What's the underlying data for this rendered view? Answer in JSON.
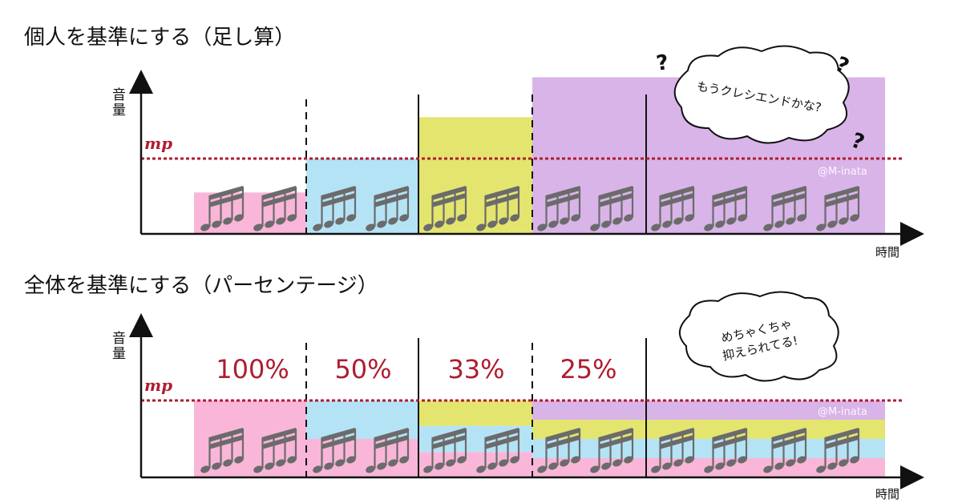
{
  "colors": {
    "pink": "#f9b6d8",
    "blue": "#b5e3f6",
    "yellow": "#e3e56f",
    "purple": "#d9b4e8",
    "reference_line": "#b01c30",
    "note": "#6b6b6b"
  },
  "legend_symbol": "note-group-icon",
  "panels": [
    {
      "title": "個人を基準にする（足し算）",
      "y_axis_label": [
        "音",
        "量"
      ],
      "x_axis_label": "時間",
      "reference_label": "mp",
      "watermark": "@M-inata",
      "percents": [],
      "bubble": [
        "もうクレシエンドかな?"
      ],
      "question_marks": [
        "?",
        "?",
        "?"
      ],
      "layers": [
        {
          "color": "pink",
          "from": 0,
          "to": 4,
          "level": 0.55
        },
        {
          "color": "blue",
          "from": 1,
          "to": 4,
          "level": 1.0
        },
        {
          "color": "yellow",
          "from": 2,
          "to": 4,
          "level": 1.55
        },
        {
          "color": "purple",
          "from": 3,
          "to": 4,
          "level": 2.08
        }
      ]
    },
    {
      "title": "全体を基準にする（パーセンテージ）",
      "y_axis_label": [
        "音",
        "量"
      ],
      "x_axis_label": "時間",
      "reference_label": "mp",
      "watermark": "@M-inata",
      "percents": [
        "100%",
        "50%",
        "33%",
        "25%"
      ],
      "bubble": [
        "めちゃくちゃ",
        "抑えられてる!"
      ],
      "question_marks": [],
      "layers": [
        {
          "color": "pink",
          "from": 0,
          "to": 1,
          "level": 1.0
        },
        {
          "color": "pink",
          "from": 1,
          "to": 2,
          "level": 0.5
        },
        {
          "color": "blue",
          "from": 1,
          "to": 2,
          "level": 1.0
        },
        {
          "color": "pink",
          "from": 2,
          "to": 3,
          "level": 0.33
        },
        {
          "color": "blue",
          "from": 2,
          "to": 3,
          "level": 0.67
        },
        {
          "color": "yellow",
          "from": 2,
          "to": 3,
          "level": 1.0
        },
        {
          "color": "pink",
          "from": 3,
          "to": 4,
          "level": 0.25
        },
        {
          "color": "blue",
          "from": 3,
          "to": 4,
          "level": 0.5
        },
        {
          "color": "yellow",
          "from": 3,
          "to": 4,
          "level": 0.75
        },
        {
          "color": "purple",
          "from": 3,
          "to": 4,
          "level": 1.0
        }
      ]
    }
  ]
}
